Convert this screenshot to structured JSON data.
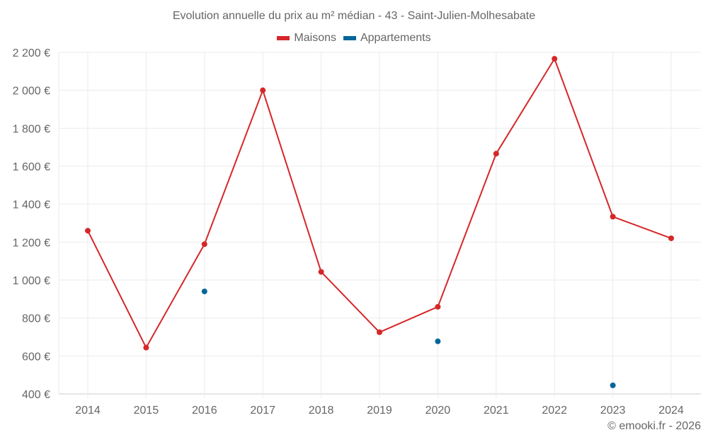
{
  "chart_data": {
    "type": "line",
    "title": "Evolution annuelle du prix au m² médian - 43 - Saint-Julien-Molhesabate",
    "xlabel": "",
    "ylabel": "",
    "categories": [
      "2014",
      "2015",
      "2016",
      "2017",
      "2018",
      "2019",
      "2020",
      "2021",
      "2022",
      "2023",
      "2024"
    ],
    "series": [
      {
        "name": "Maisons",
        "color": "#d62728",
        "values": [
          1260,
          644,
          1189,
          2000,
          1043,
          725,
          859,
          1666,
          2166,
          1334,
          1220
        ]
      },
      {
        "name": "Appartements",
        "color": "#006699",
        "values": [
          null,
          null,
          940,
          null,
          null,
          null,
          677,
          null,
          null,
          445,
          null
        ]
      }
    ],
    "yticks": [
      400,
      600,
      800,
      1000,
      1200,
      1400,
      1600,
      1800,
      2000,
      2200
    ],
    "ytick_labels": [
      "400 €",
      "600 €",
      "800 €",
      "1 000 €",
      "1 200 €",
      "1 400 €",
      "1 600 €",
      "1 800 €",
      "2 000 €",
      "2 200 €"
    ],
    "ylim": [
      400,
      2200
    ],
    "grid": true,
    "legend_position": "top"
  },
  "credit": "© emooki.fr - 2026"
}
